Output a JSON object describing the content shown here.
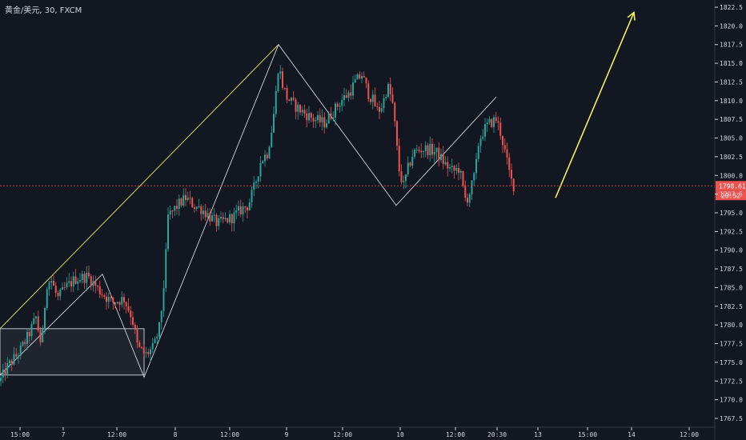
{
  "header": {
    "symbol_title": "黄金/美元, 30, FXCM"
  },
  "colors": {
    "background": "#131722",
    "up_candle": "#26a69a",
    "down_candle": "#ef5350",
    "axis_text": "#d1d4dc",
    "axis_line": "#363a45",
    "current_price_line": "#ef5350",
    "price_tag_bg": "#ef5350",
    "trend_line": "#e8f060",
    "pattern_line": "#d1d4dc",
    "arrow": "#f0f060"
  },
  "chart_data": {
    "type": "candlestick",
    "title": "黄金/美元, 30, FXCM",
    "ylim": [
      1766.5,
      1823.5
    ],
    "y_ticks": [
      1767.5,
      1770.0,
      1772.5,
      1775.0,
      1777.5,
      1780.0,
      1782.5,
      1785.0,
      1787.5,
      1790.0,
      1792.5,
      1795.0,
      1797.5,
      1800.0,
      1802.5,
      1805.0,
      1807.5,
      1810.0,
      1812.5,
      1815.0,
      1817.5,
      1820.0,
      1822.5
    ],
    "x_tick_labels": [
      "15:00",
      "7",
      "12:00",
      "8",
      "12:00",
      "9",
      "12:00",
      "10",
      "12:00",
      "20:30",
      "13",
      "15:00",
      "14",
      "12:00"
    ],
    "current_price": 1798.61,
    "current_price_label": "1798.61",
    "countdown_label": "20:52",
    "grid": false,
    "series_waypoints": [
      [
        0,
        1772.5
      ],
      [
        10,
        1774.5
      ],
      [
        25,
        1776.5
      ],
      [
        35,
        1778.5
      ],
      [
        45,
        1781.0
      ],
      [
        52,
        1777.0
      ],
      [
        58,
        1785.5
      ],
      [
        64,
        1786.0
      ],
      [
        72,
        1783.5
      ],
      [
        82,
        1785.0
      ],
      [
        95,
        1786.2
      ],
      [
        110,
        1786.5
      ],
      [
        125,
        1784.5
      ],
      [
        140,
        1783.0
      ],
      [
        155,
        1783.5
      ],
      [
        165,
        1781.0
      ],
      [
        172,
        1777.0
      ],
      [
        182,
        1776.0
      ],
      [
        192,
        1777.0
      ],
      [
        200,
        1780.0
      ],
      [
        206,
        1787.0
      ],
      [
        210,
        1794.5
      ],
      [
        222,
        1796.0
      ],
      [
        232,
        1797.0
      ],
      [
        242,
        1796.0
      ],
      [
        252,
        1795.5
      ],
      [
        262,
        1794.5
      ],
      [
        272,
        1793.5
      ],
      [
        282,
        1794.0
      ],
      [
        292,
        1794.5
      ],
      [
        302,
        1795.5
      ],
      [
        310,
        1796.0
      ],
      [
        318,
        1798.5
      ],
      [
        326,
        1802.0
      ],
      [
        334,
        1803.0
      ],
      [
        340,
        1806.5
      ],
      [
        344,
        1810.0
      ],
      [
        348,
        1815.0
      ],
      [
        352,
        1812.5
      ],
      [
        358,
        1810.5
      ],
      [
        366,
        1809.5
      ],
      [
        378,
        1808.5
      ],
      [
        392,
        1807.5
      ],
      [
        406,
        1807.0
      ],
      [
        416,
        1808.5
      ],
      [
        426,
        1810.0
      ],
      [
        436,
        1811.0
      ],
      [
        444,
        1812.5
      ],
      [
        452,
        1813.5
      ],
      [
        460,
        1811.0
      ],
      [
        466,
        1810.0
      ],
      [
        472,
        1808.5
      ],
      [
        478,
        1809.5
      ],
      [
        484,
        1812.0
      ],
      [
        490,
        1810.0
      ],
      [
        494,
        1806.0
      ],
      [
        498,
        1801.0
      ],
      [
        504,
        1798.5
      ],
      [
        510,
        1801.0
      ],
      [
        516,
        1803.0
      ],
      [
        526,
        1803.5
      ],
      [
        536,
        1803.5
      ],
      [
        546,
        1803.0
      ],
      [
        556,
        1801.5
      ],
      [
        566,
        1800.5
      ],
      [
        574,
        1801.0
      ],
      [
        578,
        1798.5
      ],
      [
        582,
        1796.5
      ],
      [
        588,
        1798.0
      ],
      [
        594,
        1800.5
      ],
      [
        598,
        1804.5
      ],
      [
        604,
        1806.0
      ],
      [
        612,
        1807.0
      ],
      [
        620,
        1807.5
      ],
      [
        626,
        1805.5
      ],
      [
        632,
        1802.5
      ],
      [
        638,
        1799.5
      ],
      [
        642,
        1798.6
      ]
    ],
    "drawings": {
      "rectangle": {
        "x_from": 0,
        "x_to": 180,
        "y_from": 1773.3,
        "y_to": 1779.5
      },
      "trend_line": [
        [
          0,
          1779.5
        ],
        [
          348,
          1817.5
        ]
      ],
      "pattern_lines": [
        [
          [
            0,
            1773.3
          ],
          [
            128,
            1786.8
          ],
          [
            180,
            1773.0
          ],
          [
            348,
            1817.5
          ],
          [
            495,
            1796.0
          ],
          [
            620,
            1810.5
          ]
        ]
      ],
      "arrow": {
        "from": [
          694,
          1797.0
        ],
        "to": [
          792,
          1821.8
        ]
      }
    }
  }
}
